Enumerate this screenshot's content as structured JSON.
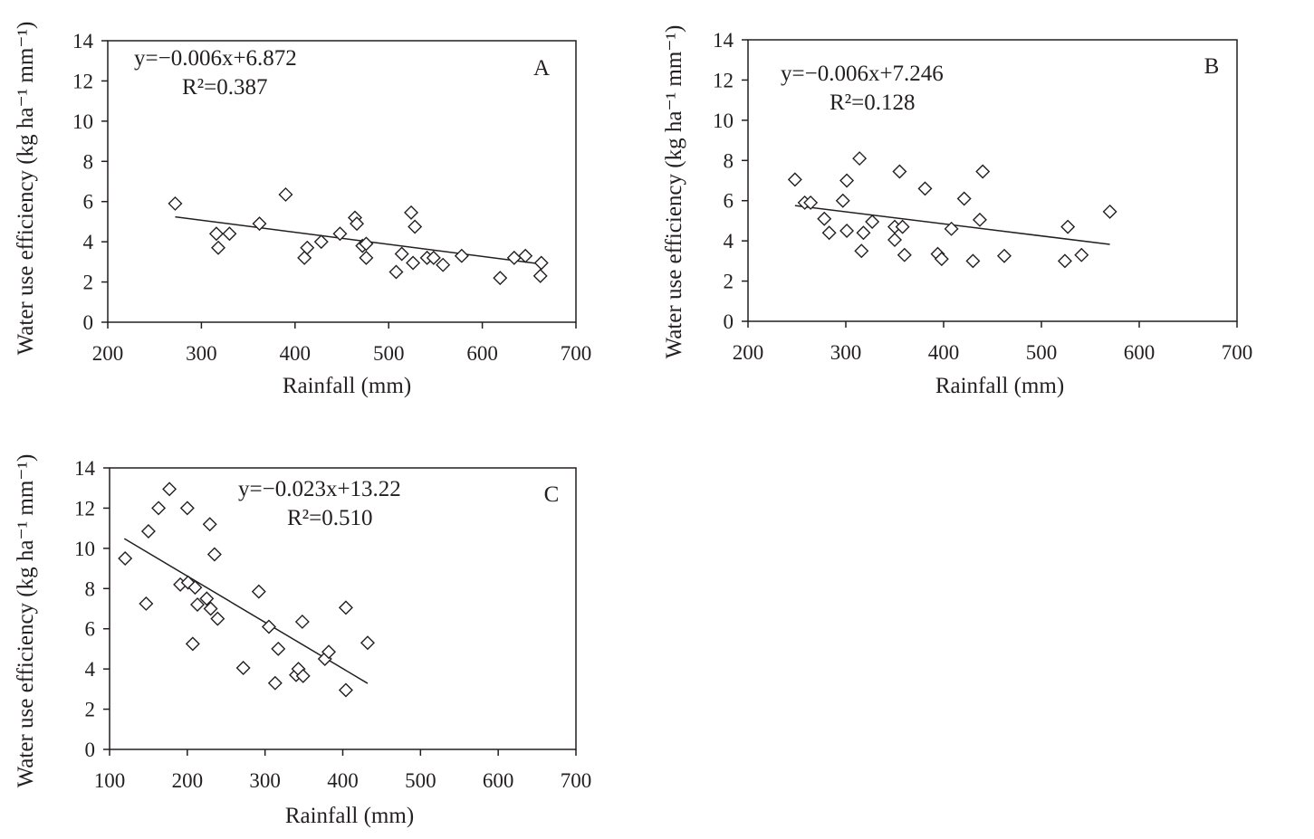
{
  "colors": {
    "ink": "#231f20",
    "background": "#ffffff"
  },
  "chart_data": [
    {
      "type": "scatter",
      "panel": "A",
      "xlabel": "Rainfall (mm)",
      "ylabel": "Water use efficiency (kg ha⁻¹ mm⁻¹)",
      "xlim": [
        200,
        700
      ],
      "ylim": [
        0,
        14
      ],
      "xticks": [
        200,
        300,
        400,
        500,
        600,
        700
      ],
      "yticks": [
        0,
        2,
        4,
        6,
        8,
        10,
        12,
        14
      ],
      "equation": "y=−0.006x+6.872",
      "r2": "R²=0.387",
      "trendline": {
        "slope": -0.006,
        "intercept": 6.872,
        "x_range": [
          272,
          663
        ]
      },
      "marker": "diamond",
      "points": [
        [
          272,
          5.9
        ],
        [
          316,
          4.4
        ],
        [
          318,
          3.7
        ],
        [
          330,
          4.4
        ],
        [
          362,
          4.9
        ],
        [
          390,
          6.35
        ],
        [
          410,
          3.2
        ],
        [
          413,
          3.7
        ],
        [
          428,
          4.0
        ],
        [
          448,
          4.4
        ],
        [
          464,
          5.2
        ],
        [
          466,
          4.9
        ],
        [
          472,
          3.8
        ],
        [
          476,
          3.9
        ],
        [
          476,
          3.2
        ],
        [
          508,
          2.5
        ],
        [
          514,
          3.4
        ],
        [
          524,
          5.45
        ],
        [
          526,
          2.95
        ],
        [
          528,
          4.75
        ],
        [
          541,
          3.2
        ],
        [
          548,
          3.2
        ],
        [
          558,
          2.85
        ],
        [
          578,
          3.3
        ],
        [
          619,
          2.2
        ],
        [
          634,
          3.2
        ],
        [
          646,
          3.3
        ],
        [
          662,
          2.3
        ],
        [
          663,
          2.95
        ]
      ]
    },
    {
      "type": "scatter",
      "panel": "B",
      "xlabel": "Rainfall (mm)",
      "ylabel": "Water use efficiency (kg ha⁻¹ mm⁻¹)",
      "xlim": [
        200,
        700
      ],
      "ylim": [
        0,
        14
      ],
      "xticks": [
        200,
        300,
        400,
        500,
        600,
        700
      ],
      "yticks": [
        0,
        2,
        4,
        6,
        8,
        10,
        12,
        14
      ],
      "equation": "y=−0.006x+7.246",
      "r2": "R²=0.128",
      "trendline": {
        "slope": -0.006,
        "intercept": 7.246,
        "x_range": [
          248,
          570
        ]
      },
      "marker": "diamond",
      "points": [
        [
          248,
          7.05
        ],
        [
          258,
          5.9
        ],
        [
          264,
          5.9
        ],
        [
          278,
          5.1
        ],
        [
          283,
          4.4
        ],
        [
          297,
          6.0
        ],
        [
          301,
          7.0
        ],
        [
          301,
          4.5
        ],
        [
          314,
          8.1
        ],
        [
          316,
          3.5
        ],
        [
          318,
          4.4
        ],
        [
          327,
          4.95
        ],
        [
          350,
          4.7
        ],
        [
          350,
          4.05
        ],
        [
          355,
          7.45
        ],
        [
          358,
          4.7
        ],
        [
          360,
          3.3
        ],
        [
          381,
          6.6
        ],
        [
          394,
          3.35
        ],
        [
          398,
          3.1
        ],
        [
          408,
          4.6
        ],
        [
          421,
          6.1
        ],
        [
          430,
          3.0
        ],
        [
          437,
          5.05
        ],
        [
          440,
          7.45
        ],
        [
          462,
          3.25
        ],
        [
          524,
          3.0
        ],
        [
          527,
          4.7
        ],
        [
          541,
          3.3
        ],
        [
          570,
          5.45
        ]
      ]
    },
    {
      "type": "scatter",
      "panel": "C",
      "xlabel": "Rainfall (mm)",
      "ylabel": "Water use efficiency (kg ha⁻¹ mm⁻¹)",
      "xlim": [
        100,
        700
      ],
      "ylim": [
        0,
        14
      ],
      "xticks": [
        100,
        200,
        300,
        400,
        500,
        600,
        700
      ],
      "yticks": [
        0,
        2,
        4,
        6,
        8,
        10,
        12,
        14
      ],
      "equation": "y=−0.023x+13.22",
      "r2": "R²=0.510",
      "trendline": {
        "slope": -0.023,
        "intercept": 13.22,
        "x_range": [
          119,
          432
        ]
      },
      "marker": "diamond",
      "points": [
        [
          120,
          9.5
        ],
        [
          147,
          7.25
        ],
        [
          150,
          10.85
        ],
        [
          163,
          12.0
        ],
        [
          177,
          12.95
        ],
        [
          191,
          8.2
        ],
        [
          200,
          12.0
        ],
        [
          201,
          8.3
        ],
        [
          207,
          5.25
        ],
        [
          210,
          8.05
        ],
        [
          213,
          7.2
        ],
        [
          225,
          7.5
        ],
        [
          229,
          11.2
        ],
        [
          230,
          7.0
        ],
        [
          235,
          9.7
        ],
        [
          239,
          6.5
        ],
        [
          272,
          4.05
        ],
        [
          292,
          7.85
        ],
        [
          305,
          6.1
        ],
        [
          313,
          3.3
        ],
        [
          317,
          5.0
        ],
        [
          340,
          3.7
        ],
        [
          343,
          4.0
        ],
        [
          348,
          6.35
        ],
        [
          349,
          3.65
        ],
        [
          377,
          4.5
        ],
        [
          382,
          4.85
        ],
        [
          404,
          7.05
        ],
        [
          404,
          2.95
        ],
        [
          432,
          5.3
        ]
      ]
    }
  ]
}
